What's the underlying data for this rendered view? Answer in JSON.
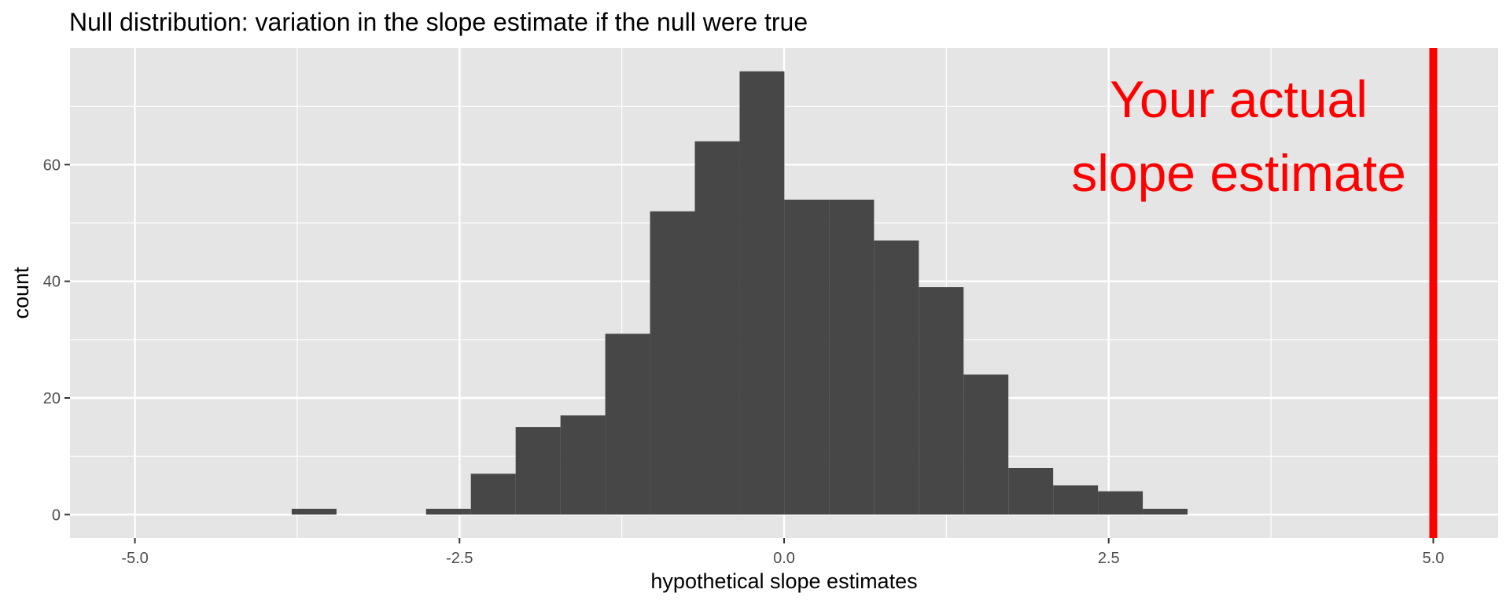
{
  "chart_data": {
    "type": "bar",
    "title": "Null distribution: variation in the slope estimate if the null were true",
    "xlabel": "hypothetical slope estimates",
    "ylabel": "count",
    "xlim": [
      -5.5,
      5.5
    ],
    "ylim": [
      -4,
      80
    ],
    "x_ticks": [
      -5.0,
      -2.5,
      0.0,
      2.5,
      5.0
    ],
    "x_tick_labels": [
      "-5.0",
      "-2.5",
      "0.0",
      "2.5",
      "5.0"
    ],
    "y_ticks": [
      0,
      20,
      40,
      60
    ],
    "y_tick_labels": [
      "0",
      "20",
      "40",
      "60"
    ],
    "grid": true,
    "bin_width": 0.345,
    "bins": [
      {
        "x": -3.62,
        "count": 1
      },
      {
        "x": -2.585,
        "count": 1
      },
      {
        "x": -2.24,
        "count": 7
      },
      {
        "x": -1.895,
        "count": 15
      },
      {
        "x": -1.55,
        "count": 17
      },
      {
        "x": -1.205,
        "count": 31
      },
      {
        "x": -0.86,
        "count": 52
      },
      {
        "x": -0.515,
        "count": 64
      },
      {
        "x": -0.17,
        "count": 76
      },
      {
        "x": 0.175,
        "count": 54
      },
      {
        "x": 0.52,
        "count": 54
      },
      {
        "x": 0.865,
        "count": 47
      },
      {
        "x": 1.21,
        "count": 39
      },
      {
        "x": 1.555,
        "count": 24
      },
      {
        "x": 1.9,
        "count": 8
      },
      {
        "x": 2.245,
        "count": 5
      },
      {
        "x": 2.59,
        "count": 4
      },
      {
        "x": 2.935,
        "count": 1
      }
    ],
    "reference_line": {
      "x": 5.0,
      "color": "#ff0000"
    },
    "annotation": {
      "lines": [
        "Your actual",
        "slope estimate"
      ],
      "color": "#ff0000"
    },
    "colors": {
      "bar": "#474747",
      "panel": "#e5e5e5",
      "grid": "#ffffff"
    }
  }
}
